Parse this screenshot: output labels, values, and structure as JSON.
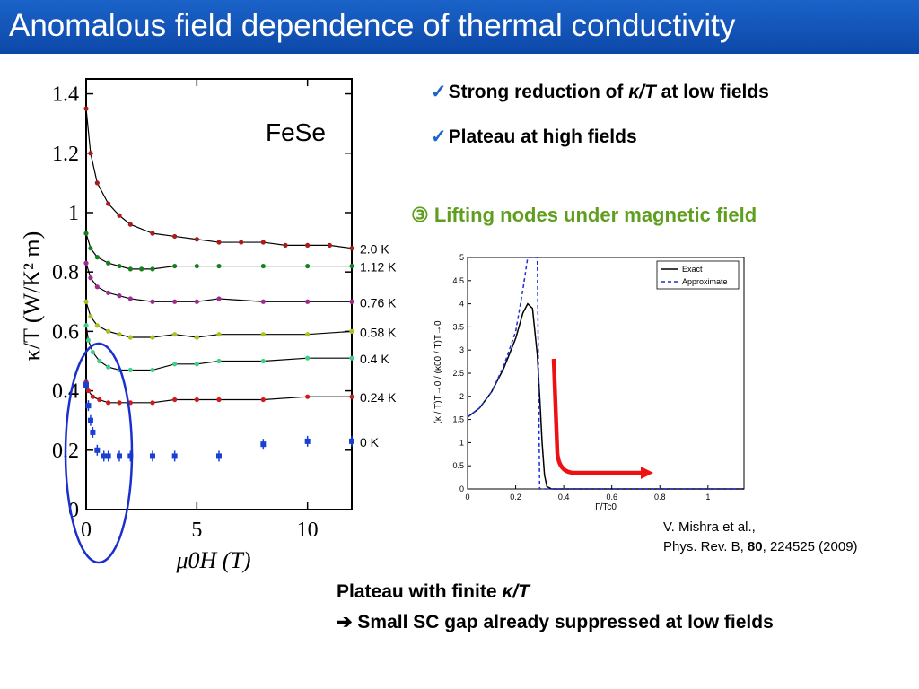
{
  "slide": {
    "title": "Anomalous field dependence of thermal conductivity",
    "bullets": [
      {
        "check": "✓",
        "pre": "Strong reduction of ",
        "math": "κ/T",
        "post": " at low fields"
      },
      {
        "check": "✓",
        "pre": "Plateau at high fields",
        "math": "",
        "post": ""
      }
    ],
    "heading": "③ Lifting nodes under magnetic field",
    "reference": {
      "authors": "V. Mishra et al.,",
      "journal": "Phys. Rev. B, ",
      "volume": "80",
      "rest": ", 224525 (2009)"
    },
    "conclusion": {
      "line1_pre": "Plateau with finite ",
      "line1_math": "κ/T",
      "line2": "➔ Small SC gap already suppressed at low fields"
    }
  },
  "colors": {
    "title_bar": "#1461c6",
    "heading": "#5f9e1e",
    "ellipse": "#1b2fd1",
    "red_arrow": "#ee1111"
  },
  "chart_data": [
    {
      "type": "scatter",
      "annotation": "FeSe",
      "xlabel": "μ0H (T)",
      "ylabel": "κ/T (W/K² m)",
      "xlim": [
        0,
        12
      ],
      "ylim": [
        0,
        1.45
      ],
      "xticks": [
        0,
        5,
        10
      ],
      "yticks": [
        0,
        0.2,
        0.4,
        0.6,
        0.8,
        1.0,
        1.2,
        1.4
      ],
      "series": [
        {
          "name": "2.0 K",
          "color": "#a81c1c",
          "x": [
            0,
            0.2,
            0.5,
            1,
            1.5,
            2,
            3,
            4,
            5,
            6,
            7,
            8,
            9,
            10,
            11,
            12
          ],
          "y": [
            1.35,
            1.2,
            1.1,
            1.03,
            0.99,
            0.96,
            0.93,
            0.92,
            0.91,
            0.9,
            0.9,
            0.9,
            0.89,
            0.89,
            0.89,
            0.88
          ]
        },
        {
          "name": "1.12 K",
          "color": "#14801e",
          "x": [
            0,
            0.2,
            0.5,
            1,
            1.5,
            2,
            2.5,
            3,
            4,
            5,
            6,
            8,
            10,
            12
          ],
          "y": [
            0.93,
            0.88,
            0.85,
            0.83,
            0.82,
            0.81,
            0.81,
            0.81,
            0.82,
            0.82,
            0.82,
            0.82,
            0.82,
            0.82
          ]
        },
        {
          "name": "0.76 K",
          "color": "#9e2b8e",
          "x": [
            0,
            0.2,
            0.5,
            1,
            1.5,
            2,
            3,
            4,
            5,
            6,
            8,
            10,
            12
          ],
          "y": [
            0.83,
            0.78,
            0.75,
            0.73,
            0.72,
            0.71,
            0.7,
            0.7,
            0.7,
            0.71,
            0.7,
            0.7,
            0.7
          ]
        },
        {
          "name": "0.58 K",
          "color": "#a8c21e",
          "x": [
            0,
            0.2,
            0.5,
            1,
            1.5,
            2,
            3,
            4,
            5,
            6,
            8,
            10,
            12
          ],
          "y": [
            0.7,
            0.65,
            0.62,
            0.6,
            0.59,
            0.58,
            0.58,
            0.59,
            0.58,
            0.59,
            0.59,
            0.59,
            0.6
          ]
        },
        {
          "name": "0.4 K",
          "color": "#3ecf8a",
          "x": [
            0,
            0.1,
            0.3,
            0.6,
            1,
            1.5,
            2,
            3,
            4,
            5,
            6,
            8,
            10,
            12
          ],
          "y": [
            0.62,
            0.57,
            0.53,
            0.5,
            0.48,
            0.47,
            0.47,
            0.47,
            0.49,
            0.49,
            0.5,
            0.5,
            0.51,
            0.51
          ]
        },
        {
          "name": "0.24 K",
          "color": "#d11a1a",
          "x": [
            0,
            0.1,
            0.3,
            0.6,
            1,
            1.5,
            2,
            3,
            4,
            5,
            6,
            8,
            10,
            12
          ],
          "y": [
            0.43,
            0.4,
            0.38,
            0.37,
            0.36,
            0.36,
            0.36,
            0.36,
            0.37,
            0.37,
            0.37,
            0.37,
            0.38,
            0.38
          ]
        },
        {
          "name": "0 K",
          "color": "#1a3fd1",
          "x": [
            0,
            0.1,
            0.2,
            0.3,
            0.5,
            0.8,
            1,
            1.5,
            2,
            3,
            4,
            6,
            8,
            10,
            12
          ],
          "y": [
            0.42,
            0.35,
            0.3,
            0.26,
            0.2,
            0.18,
            0.18,
            0.18,
            0.18,
            0.18,
            0.18,
            0.18,
            0.22,
            0.23,
            0.23
          ]
        }
      ]
    },
    {
      "type": "line",
      "xlabel": "Γ/Tc0",
      "ylabel": "(κ / T)T→0 / (κ00 / T)T→0",
      "xlim": [
        0,
        1.15
      ],
      "ylim": [
        0,
        5
      ],
      "xticks": [
        "0",
        "0.2",
        "0.4",
        "0.6",
        "0.8",
        "1"
      ],
      "yticks": [
        "0",
        "0.5",
        "1",
        "1.5",
        "2",
        "2.5",
        "3",
        "3.5",
        "4",
        "4.5",
        "5"
      ],
      "legend": "top-right",
      "series": [
        {
          "name": "Exact",
          "color": "#000000",
          "style": "solid",
          "x": [
            0,
            0.05,
            0.1,
            0.15,
            0.2,
            0.23,
            0.25,
            0.27,
            0.29,
            0.3,
            0.31,
            0.32,
            0.33,
            0.35,
            0.4,
            0.6,
            1.15
          ],
          "y": [
            1.55,
            1.75,
            2.1,
            2.6,
            3.25,
            3.8,
            4.0,
            3.9,
            2.9,
            2.0,
            1.0,
            0.3,
            0.05,
            0.0,
            0.0,
            0.0,
            0.0
          ]
        },
        {
          "name": "Approximate",
          "color": "#1a2fd1",
          "style": "dashed",
          "x": [
            0,
            0.05,
            0.1,
            0.15,
            0.2,
            0.23,
            0.25,
            0.26,
            0.27,
            0.28,
            0.29,
            0.295,
            0.3,
            0.31,
            0.4,
            0.6,
            1.15
          ],
          "y": [
            1.55,
            1.75,
            2.1,
            2.65,
            3.4,
            4.3,
            5.0,
            5.0,
            5.0,
            5.0,
            5.0,
            2.5,
            0.0,
            0.0,
            0.0,
            0.0,
            0.0
          ]
        }
      ]
    }
  ]
}
